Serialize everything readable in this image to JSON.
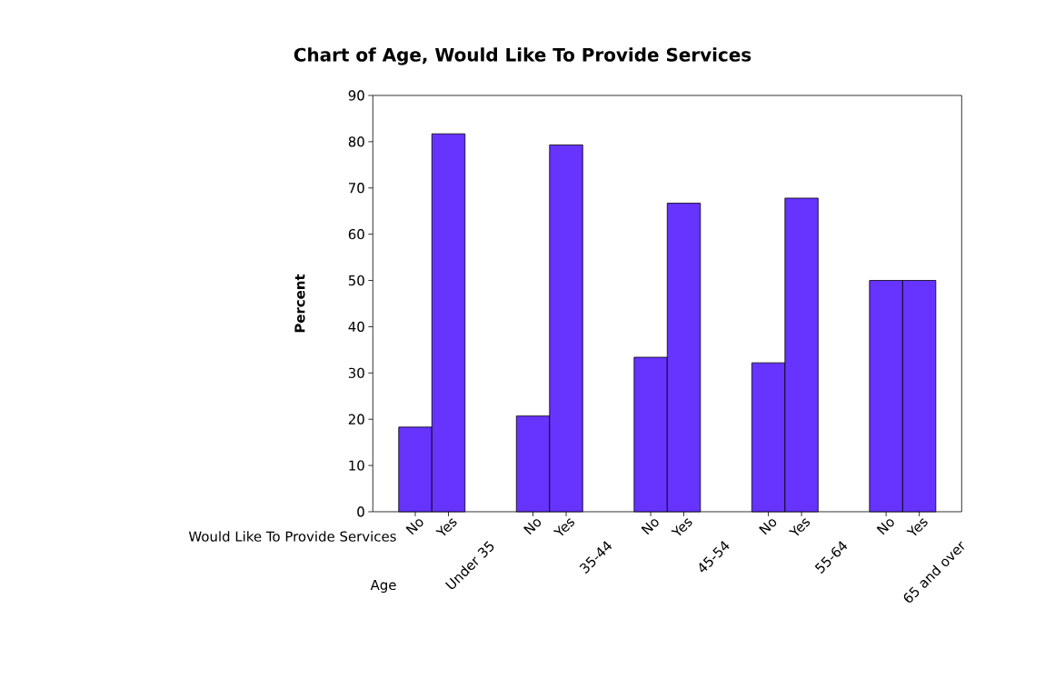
{
  "chart_data": {
    "type": "bar",
    "title": "Chart of Age, Would Like To Provide Services",
    "ylabel": "Percent",
    "categories": [
      "No",
      "Yes",
      "No",
      "Yes",
      "No",
      "Yes",
      "No",
      "Yes",
      "No",
      "Yes"
    ],
    "values": [
      18.3,
      81.7,
      20.7,
      79.3,
      33.4,
      66.7,
      32.2,
      67.8,
      50,
      50
    ],
    "color": "#6633ff",
    "ylim": [
      0,
      90
    ],
    "yticks": [
      0,
      10,
      20,
      30,
      40,
      50,
      60,
      70,
      80,
      90
    ],
    "grid": false,
    "annotations": [
      "Would Like To Provide Services",
      "Age",
      "Under 35",
      "35-44",
      "45-54",
      "55-64",
      "65 and over"
    ]
  }
}
